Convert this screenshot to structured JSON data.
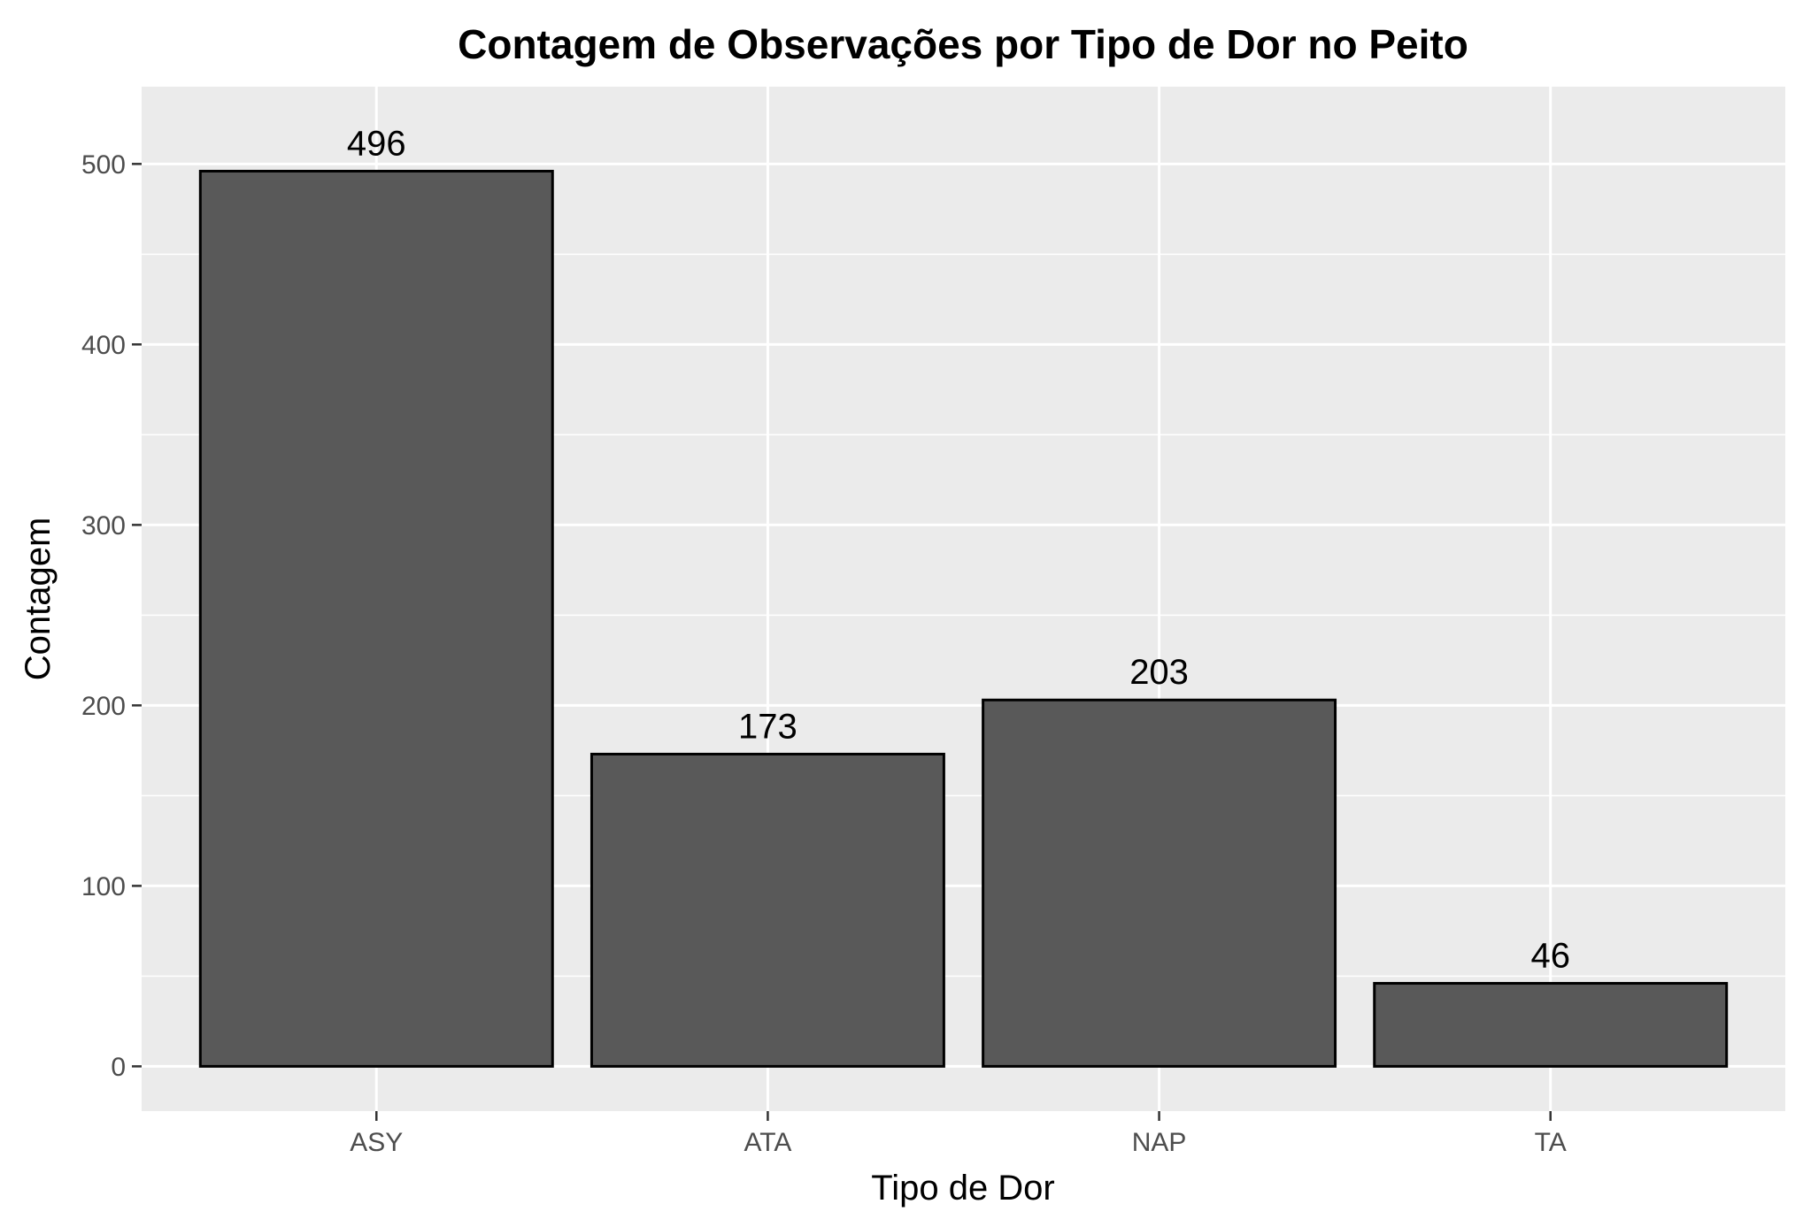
{
  "chart_data": {
    "type": "bar",
    "title": "Contagem de Observações por Tipo de Dor no Peito",
    "xlabel": "Tipo de Dor",
    "ylabel": "Contagem",
    "categories": [
      "ASY",
      "ATA",
      "NAP",
      "TA"
    ],
    "values": [
      496,
      173,
      203,
      46
    ],
    "data_labels": [
      "496",
      "173",
      "203",
      "46"
    ],
    "ylim": [
      -24.8,
      542.8
    ],
    "yticks": [
      0,
      100,
      200,
      300,
      400,
      500
    ],
    "ytick_labels": [
      "0",
      "100",
      "200",
      "300",
      "400",
      "500"
    ],
    "grid": true,
    "legend": "none",
    "colors": {
      "bar_fill": "#595959",
      "bar_stroke": "#000000",
      "panel_background": "#ebebeb",
      "grid": "#ffffff"
    }
  }
}
